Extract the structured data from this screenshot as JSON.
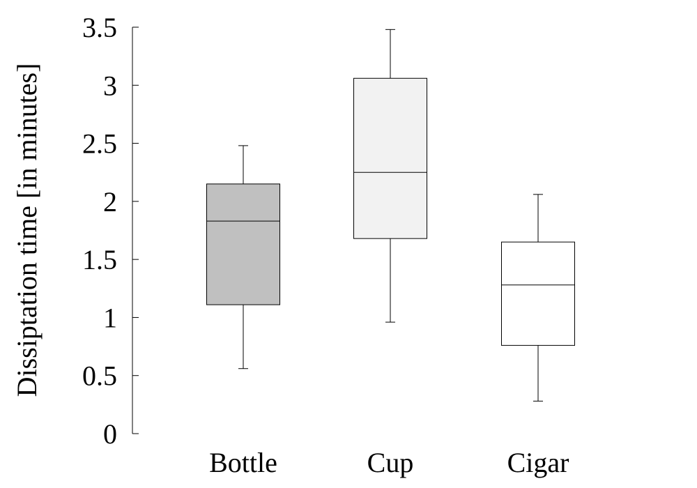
{
  "chart_data": {
    "type": "box",
    "ylabel": "Dissiptation time [in minutes]",
    "xlabel": "",
    "ylim": [
      0,
      3.5
    ],
    "yticks": [
      "0",
      "0.5",
      "1",
      "1.5",
      "2",
      "2.5",
      "3",
      "3.5"
    ],
    "grid": false,
    "categories": [
      "Bottle",
      "Cup",
      "Cigar"
    ],
    "boxes": [
      {
        "category": "Bottle",
        "min": 0.56,
        "q1": 1.11,
        "median": 1.83,
        "q3": 2.15,
        "max": 2.48,
        "color": "#c0c0c0"
      },
      {
        "category": "Cup",
        "min": 0.96,
        "q1": 1.68,
        "median": 2.25,
        "q3": 3.06,
        "max": 3.48,
        "color": "#f2f2f2"
      },
      {
        "category": "Cigar",
        "min": 0.28,
        "q1": 0.76,
        "median": 1.28,
        "q3": 1.65,
        "max": 2.06,
        "color": "#ffffff"
      }
    ]
  }
}
